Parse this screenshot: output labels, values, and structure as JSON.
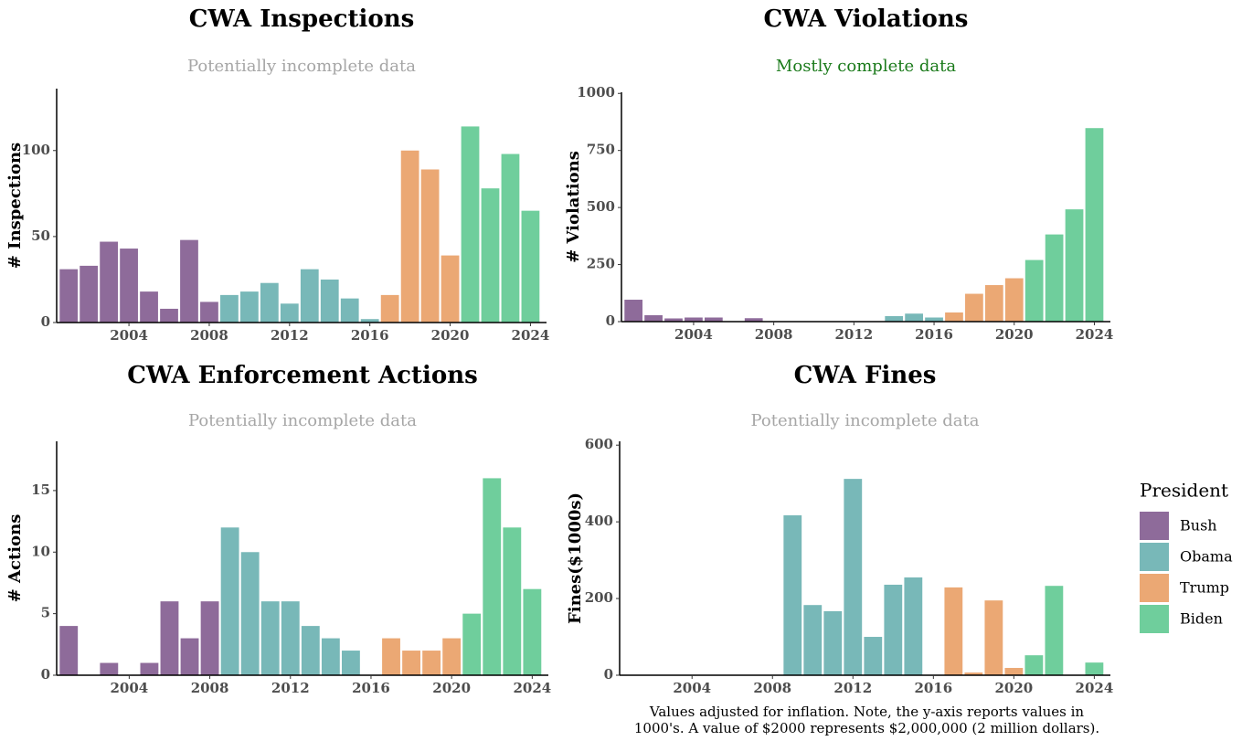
{
  "chart_data": [
    {
      "type": "bar",
      "title": "CWA Inspections",
      "subtitle": "Potentially incomplete data",
      "subtitle_color": "#a6a6a6",
      "ylabel": "# Inspections",
      "legend_title": "President",
      "x": [
        2001,
        2002,
        2003,
        2004,
        2005,
        2006,
        2007,
        2008,
        2009,
        2010,
        2011,
        2012,
        2013,
        2014,
        2015,
        2016,
        2017,
        2018,
        2019,
        2020,
        2021,
        2022,
        2023,
        2024
      ],
      "xlim": [
        2000.4,
        2024.8
      ],
      "xticks": [
        2004,
        2008,
        2012,
        2016,
        2020,
        2024
      ],
      "ylim": [
        0,
        136
      ],
      "yticks": [
        0,
        50,
        100
      ],
      "series": [
        {
          "name": "Bush",
          "color": "#8e6b9a",
          "values": [
            31,
            33,
            47,
            43,
            18,
            8,
            48,
            12,
            null,
            null,
            null,
            null,
            null,
            null,
            null,
            null,
            null,
            null,
            null,
            null,
            null,
            null,
            null,
            null
          ]
        },
        {
          "name": "Obama",
          "color": "#78b8b8",
          "values": [
            null,
            null,
            null,
            null,
            null,
            null,
            null,
            null,
            16,
            18,
            23,
            11,
            31,
            25,
            14,
            2,
            null,
            null,
            null,
            null,
            null,
            null,
            null,
            null
          ]
        },
        {
          "name": "Trump",
          "color": "#eba874",
          "values": [
            null,
            null,
            null,
            null,
            null,
            null,
            null,
            null,
            null,
            null,
            null,
            null,
            null,
            null,
            null,
            null,
            16,
            100,
            89,
            39,
            null,
            null,
            null,
            null
          ]
        },
        {
          "name": "Biden",
          "color": "#6fce9c",
          "values": [
            null,
            null,
            null,
            null,
            null,
            null,
            null,
            null,
            null,
            null,
            null,
            null,
            null,
            null,
            null,
            null,
            null,
            null,
            null,
            null,
            114,
            78,
            98,
            65
          ]
        }
      ]
    },
    {
      "type": "bar",
      "title": "CWA Violations",
      "subtitle": "Mostly complete data",
      "subtitle_color": "#1a7a1a",
      "ylabel": "# Violations",
      "x": [
        2001,
        2002,
        2003,
        2004,
        2005,
        2006,
        2007,
        2008,
        2009,
        2010,
        2011,
        2012,
        2013,
        2014,
        2015,
        2016,
        2017,
        2018,
        2019,
        2020,
        2021,
        2022,
        2023,
        2024
      ],
      "xlim": [
        2000.4,
        2024.8
      ],
      "xticks": [
        2004,
        2008,
        2012,
        2016,
        2020,
        2024
      ],
      "ylim": [
        0,
        1005
      ],
      "yticks": [
        0,
        250,
        500,
        750,
        1000
      ],
      "series": [
        {
          "color": "#8e6b9a",
          "values": [
            96,
            28,
            14,
            18,
            18,
            null,
            15,
            null,
            null,
            null,
            null,
            null,
            null,
            null,
            null,
            null,
            null,
            null,
            null,
            null,
            null,
            null,
            null,
            null
          ]
        },
        {
          "color": "#78b8b8",
          "values": [
            null,
            null,
            null,
            null,
            null,
            null,
            null,
            null,
            null,
            null,
            null,
            null,
            null,
            24,
            35,
            18,
            null,
            null,
            null,
            null,
            null,
            null,
            null,
            null
          ]
        },
        {
          "color": "#eba874",
          "values": [
            null,
            null,
            null,
            null,
            null,
            null,
            null,
            null,
            null,
            null,
            null,
            null,
            null,
            null,
            null,
            null,
            40,
            122,
            160,
            190,
            null,
            null,
            null,
            null
          ]
        },
        {
          "color": "#6fce9c",
          "values": [
            null,
            null,
            null,
            null,
            null,
            null,
            null,
            null,
            null,
            null,
            null,
            null,
            null,
            null,
            null,
            null,
            null,
            null,
            null,
            null,
            270,
            382,
            492,
            848
          ]
        }
      ]
    },
    {
      "type": "bar",
      "title": "CWA Enforcement Actions",
      "subtitle": "Potentially incomplete data",
      "subtitle_color": "#a6a6a6",
      "ylabel": "# Actions",
      "x": [
        2001,
        2002,
        2003,
        2004,
        2005,
        2006,
        2007,
        2008,
        2009,
        2010,
        2011,
        2012,
        2013,
        2014,
        2015,
        2016,
        2017,
        2018,
        2019,
        2020,
        2021,
        2022,
        2023,
        2024
      ],
      "xlim": [
        2000.4,
        2024.8
      ],
      "xticks": [
        2004,
        2008,
        2012,
        2016,
        2020,
        2024
      ],
      "ylim": [
        0,
        19
      ],
      "yticks": [
        0,
        5,
        10,
        15
      ],
      "series": [
        {
          "color": "#8e6b9a",
          "values": [
            4,
            null,
            1,
            null,
            1,
            6,
            3,
            6,
            null,
            null,
            null,
            null,
            null,
            null,
            null,
            null,
            null,
            null,
            null,
            null,
            null,
            null,
            null,
            null
          ]
        },
        {
          "color": "#78b8b8",
          "values": [
            null,
            null,
            null,
            null,
            null,
            null,
            null,
            null,
            12,
            10,
            6,
            6,
            4,
            3,
            2,
            null,
            null,
            null,
            null,
            null,
            null,
            null,
            null,
            null
          ]
        },
        {
          "color": "#eba874",
          "values": [
            null,
            null,
            null,
            null,
            null,
            null,
            null,
            null,
            null,
            null,
            null,
            null,
            null,
            null,
            null,
            null,
            3,
            2,
            2,
            3,
            null,
            null,
            null,
            null
          ]
        },
        {
          "color": "#6fce9c",
          "values": [
            null,
            null,
            null,
            null,
            null,
            null,
            null,
            null,
            null,
            null,
            null,
            null,
            null,
            null,
            null,
            null,
            null,
            null,
            null,
            null,
            5,
            16,
            12,
            7
          ]
        }
      ]
    },
    {
      "type": "bar",
      "title": "CWA Fines",
      "subtitle": "Potentially incomplete data",
      "subtitle_color": "#a6a6a6",
      "ylabel": "Fines($1000s)",
      "note": [
        "Values adjusted for inflation. Note, the y-axis reports values in",
        "1000's. A value of $2000 represents $2,000,000 (2 million dollars)."
      ],
      "x": [
        2001,
        2002,
        2003,
        2004,
        2005,
        2006,
        2007,
        2008,
        2009,
        2010,
        2011,
        2012,
        2013,
        2014,
        2015,
        2016,
        2017,
        2018,
        2019,
        2020,
        2021,
        2022,
        2023,
        2024
      ],
      "xlim": [
        2000.4,
        2024.8
      ],
      "xticks": [
        2004,
        2008,
        2012,
        2016,
        2020,
        2024
      ],
      "ylim": [
        0,
        610
      ],
      "yticks": [
        0,
        200,
        400,
        600
      ],
      "series": [
        {
          "color": "#78b8b8",
          "values": [
            null,
            null,
            null,
            null,
            null,
            null,
            null,
            null,
            417,
            183,
            167,
            512,
            100,
            236,
            255,
            null,
            null,
            null,
            null,
            null,
            null,
            null,
            null,
            null
          ]
        },
        {
          "color": "#eba874",
          "values": [
            null,
            null,
            null,
            null,
            null,
            null,
            null,
            null,
            null,
            null,
            null,
            null,
            null,
            null,
            null,
            null,
            229,
            7,
            195,
            19,
            null,
            null,
            null,
            null
          ]
        },
        {
          "color": "#6fce9c",
          "values": [
            null,
            null,
            null,
            null,
            null,
            null,
            null,
            null,
            null,
            null,
            null,
            null,
            null,
            null,
            null,
            null,
            null,
            null,
            null,
            null,
            52,
            233,
            null,
            33
          ]
        }
      ]
    }
  ]
}
